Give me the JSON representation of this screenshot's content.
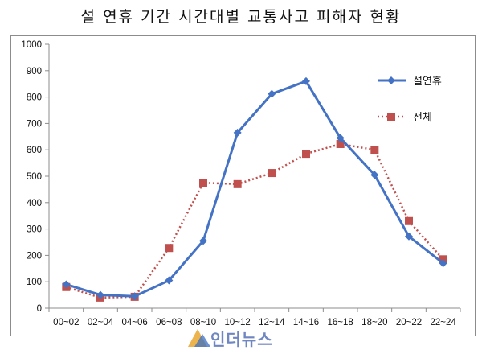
{
  "chart_data": {
    "type": "line",
    "title": "설 연휴 기간 시간대별 교통사고 피해자 현황",
    "categories": [
      "00~02",
      "02~04",
      "04~06",
      "06~08",
      "08~10",
      "10~12",
      "12~14",
      "14~16",
      "16~18",
      "18~20",
      "20~22",
      "22~24"
    ],
    "series": [
      {
        "name": "설연휴",
        "values": [
          90,
          50,
          45,
          105,
          255,
          665,
          812,
          860,
          645,
          505,
          272,
          170
        ],
        "color": "#4472c4",
        "marker": "diamond",
        "style": "solid"
      },
      {
        "name": "전체",
        "values": [
          80,
          40,
          43,
          228,
          475,
          470,
          512,
          585,
          622,
          600,
          330,
          185
        ],
        "color": "#c0504d",
        "marker": "square",
        "style": "dotted"
      }
    ],
    "ylim": [
      0,
      1000
    ],
    "yticks": [
      0,
      100,
      200,
      300,
      400,
      500,
      600,
      700,
      800,
      900,
      1000
    ],
    "grid": false,
    "legend": "right"
  },
  "watermark": {
    "text": "인더뉴스",
    "logo_colors": [
      "#e8a020",
      "#3a6fc4"
    ]
  }
}
